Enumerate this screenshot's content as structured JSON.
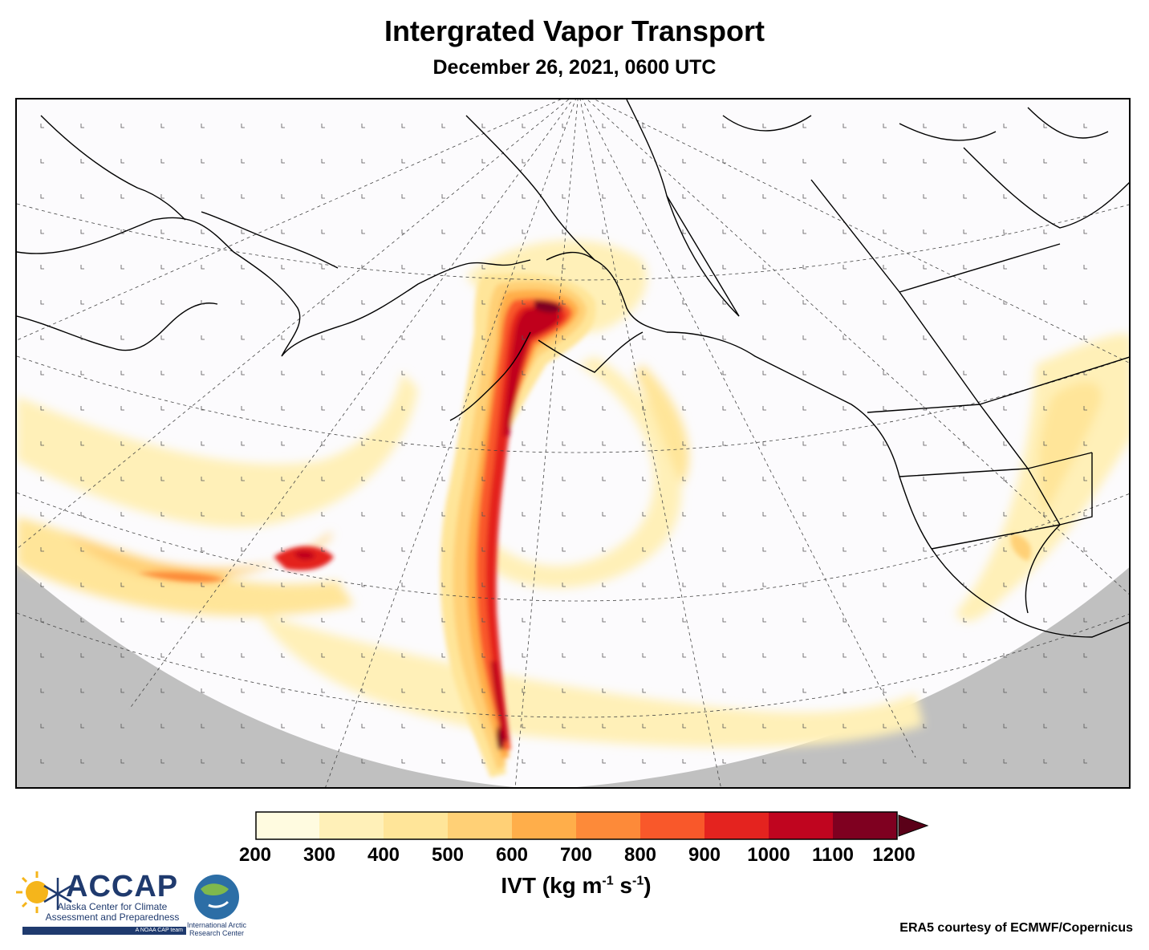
{
  "title": "Intergrated Vapor Transport",
  "subtitle": "December 26, 2021, 0600 UTC",
  "colorbar": {
    "ticks": [
      "200",
      "300",
      "400",
      "500",
      "600",
      "700",
      "800",
      "900",
      "1000",
      "1100",
      "1200"
    ],
    "colors": [
      "#fffbe0",
      "#fff0b8",
      "#ffe599",
      "#ffd076",
      "#ffae4a",
      "#fd8a39",
      "#f9582a",
      "#e4231f",
      "#c0051f",
      "#7f0020"
    ],
    "extend_color": "#5a0018",
    "label": "IVT (kg m",
    "label_sup1": "-1",
    "label_mid": " s",
    "label_sup2": "-1",
    "label_end": ")"
  },
  "logos": {
    "accap_name": "ACCAP",
    "accap_sub": "Alaska Center for Climate Assessment and Preparedness",
    "accap_tag": "A NOAA CAP team",
    "iarc_name": "International Arctic Research Center"
  },
  "credit": "ERA5 courtesy of ECMWF/Copernicus",
  "colors": {
    "land_outline": "#000000",
    "ocean_bg": "#fcfbfd",
    "out_of_domain": "#c0c0c0"
  }
}
